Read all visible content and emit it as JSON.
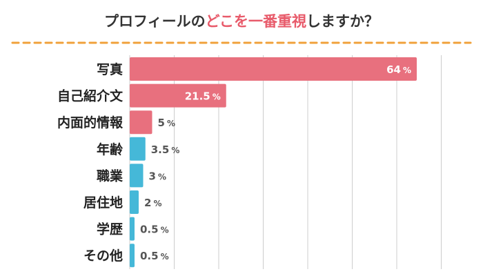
{
  "chart_data": {
    "type": "bar",
    "orientation": "horizontal",
    "title": {
      "before": "プロフィールの",
      "highlight": "どこを一番重視",
      "after": "しますか？"
    },
    "categories": [
      "写真",
      "自己紹介文",
      "内面的情報",
      "年齢",
      "職業",
      "居住地",
      "学歴",
      "その他"
    ],
    "values": [
      64,
      21.5,
      5,
      3.5,
      3,
      2,
      0.5,
      0.5
    ],
    "value_labels": [
      "64",
      "21.5",
      "5",
      "3.5",
      "3",
      "2",
      "0.5",
      "0.5"
    ],
    "unit": "%",
    "xlim": [
      0,
      70
    ],
    "grid": true,
    "legend": "none",
    "colors": {
      "highlight": "#e8707e",
      "normal": "#45b8d8",
      "title_highlight": "#e85a6a",
      "title_text": "#333333",
      "divider": "#f0a13a",
      "grid": "#cccccc",
      "label_inside": "#ffffff",
      "label_outside": "#555555"
    },
    "highlighted_categories": [
      "写真",
      "自己紹介文",
      "内面的情報"
    ]
  }
}
